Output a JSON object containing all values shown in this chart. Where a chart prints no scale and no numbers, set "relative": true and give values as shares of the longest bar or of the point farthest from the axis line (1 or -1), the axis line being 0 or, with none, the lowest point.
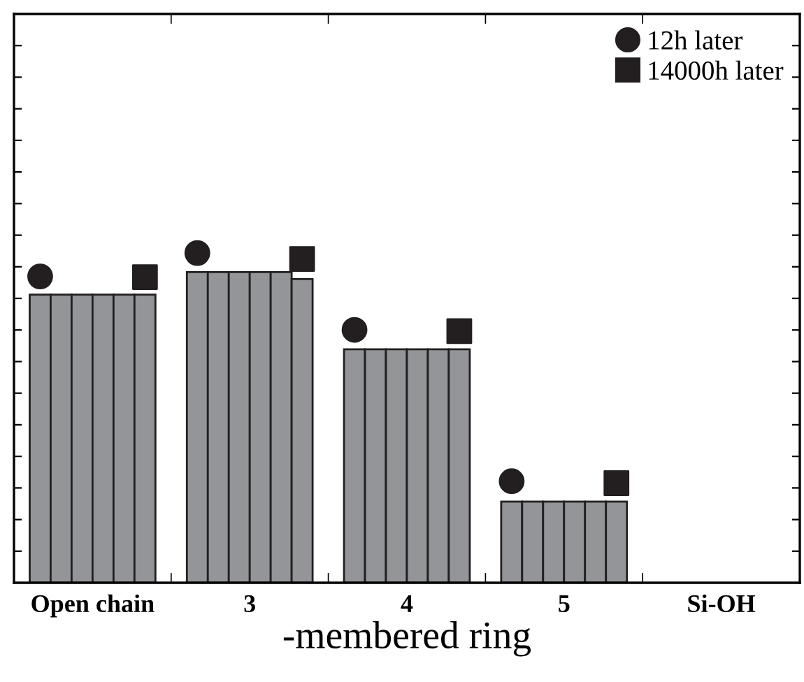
{
  "chart_data": {
    "type": "bar",
    "relative": true,
    "xlabel": "-membered ring",
    "categories": [
      "Open chain",
      "3",
      "4",
      "5",
      "Si-OH"
    ],
    "series": [
      {
        "color": "#939598",
        "values": [
          0.874,
          0.942,
          0.708,
          0.246,
          null
        ]
      },
      {
        "color": "#939598",
        "values": [
          0.874,
          0.942,
          0.708,
          0.246,
          null
        ]
      },
      {
        "color": "#939598",
        "values": [
          0.874,
          0.942,
          0.708,
          0.246,
          null
        ]
      },
      {
        "color": "#939598",
        "values": [
          0.874,
          0.942,
          0.708,
          0.246,
          null
        ]
      },
      {
        "color": "#939598",
        "values": [
          0.874,
          0.942,
          0.708,
          0.246,
          null
        ]
      },
      {
        "color": "#939598",
        "values": [
          0.874,
          0.921,
          0.708,
          0.246,
          null
        ]
      },
      {
        "type": "scatter",
        "name": "12h later",
        "marker": "circle",
        "color": "#231f20",
        "x": [
          "Open chain",
          "3",
          "4",
          "5"
        ],
        "values": [
          0.929,
          1,
          0.767,
          0.308
        ]
      },
      {
        "type": "scatter",
        "name": "14000h later",
        "marker": "square",
        "color": "#231f20",
        "x": [
          "Open chain",
          "3",
          "4",
          "5"
        ],
        "values": [
          0.927,
          0.982,
          0.763,
          0.302
        ]
      }
    ],
    "legend": "top right",
    "grid": false
  }
}
